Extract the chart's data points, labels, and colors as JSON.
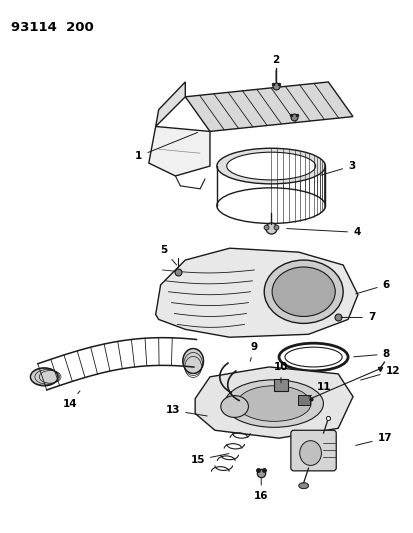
{
  "title": "93114  200",
  "background_color": "#ffffff",
  "line_color": "#1a1a1a",
  "figsize": [
    4.14,
    5.33
  ],
  "dpi": 100
}
